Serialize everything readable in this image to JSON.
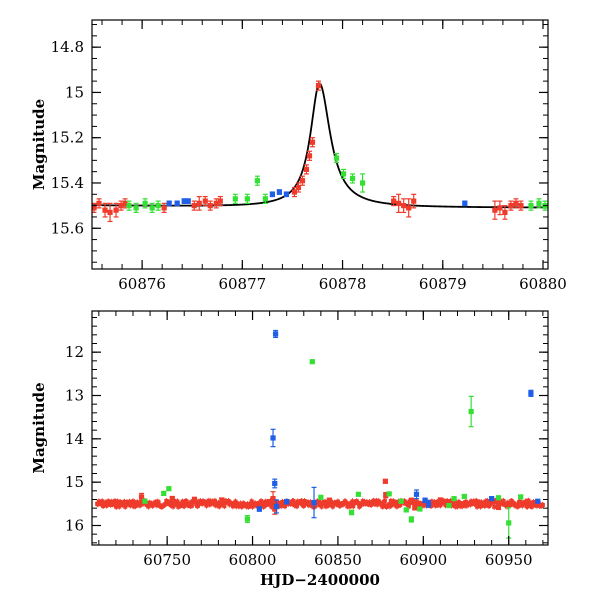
{
  "colors": {
    "red": "#ee3b2b",
    "green": "#35e035",
    "blue": "#1e5fe6",
    "model": "#000000"
  },
  "chart_data": [
    {
      "type": "scatter",
      "xlabel": "",
      "ylabel": "Magnitude",
      "xlim": [
        60875.5,
        60880.05
      ],
      "ylim": [
        15.78,
        14.68
      ],
      "y_inverted": true,
      "grid": false,
      "xticks": [
        60876,
        60877,
        60878,
        60879,
        60880
      ],
      "xtick_labels": [
        "60876",
        "60877",
        "60878",
        "60879",
        "60880"
      ],
      "yticks": [
        14.8,
        15.0,
        15.2,
        15.4,
        15.6
      ],
      "ytick_labels": [
        "14.8",
        "15",
        "15.2",
        "15.4",
        "15.6"
      ],
      "model_curve": {
        "type": "lorentzian_peak",
        "baseline": 15.51,
        "t0": 60877.77,
        "peak_mag": 14.96,
        "tau": 0.11,
        "tau_after": 0.13,
        "slope": -0.0106,
        "slope_ref": 60875.5,
        "color": "black"
      },
      "series": [
        {
          "color": "red",
          "points": [
            [
              60875.52,
              15.51,
              0.02
            ],
            [
              60875.57,
              15.49,
              0.02
            ],
            [
              60875.63,
              15.52,
              0.03
            ],
            [
              60875.68,
              15.53,
              0.04
            ],
            [
              60875.74,
              15.52,
              0.03
            ],
            [
              60875.79,
              15.5,
              0.02
            ],
            [
              60875.83,
              15.49,
              0.02
            ],
            [
              60876.22,
              15.51,
              0.02
            ],
            [
              60876.52,
              15.5,
              0.02
            ],
            [
              60876.57,
              15.49,
              0.03
            ],
            [
              60876.63,
              15.48,
              0.02
            ],
            [
              60876.68,
              15.5,
              0.02
            ],
            [
              60876.74,
              15.49,
              0.02
            ],
            [
              60876.78,
              15.48,
              0.02
            ],
            [
              60877.52,
              15.44,
              0.02
            ],
            [
              60877.56,
              15.42,
              0.02
            ],
            [
              60877.6,
              15.39,
              0.02
            ],
            [
              60877.64,
              15.34,
              0.02
            ],
            [
              60877.67,
              15.28,
              0.02
            ],
            [
              60877.7,
              15.22,
              0.02
            ],
            [
              60877.76,
              14.97,
              0.02
            ],
            [
              60878.51,
              15.48,
              0.02
            ],
            [
              60878.56,
              15.49,
              0.04
            ],
            [
              60878.61,
              15.5,
              0.03
            ],
            [
              60878.66,
              15.51,
              0.04
            ],
            [
              60878.71,
              15.48,
              0.03
            ],
            [
              60879.52,
              15.52,
              0.04
            ],
            [
              60879.57,
              15.51,
              0.03
            ],
            [
              60879.62,
              15.53,
              0.03
            ],
            [
              60879.68,
              15.5,
              0.02
            ],
            [
              60879.73,
              15.49,
              0.02
            ],
            [
              60879.78,
              15.5,
              0.02
            ]
          ]
        },
        {
          "color": "green",
          "points": [
            [
              60875.87,
              15.5,
              0.02
            ],
            [
              60875.94,
              15.51,
              0.02
            ],
            [
              60876.03,
              15.49,
              0.02
            ],
            [
              60876.1,
              15.51,
              0.02
            ],
            [
              60876.16,
              15.5,
              0.02
            ],
            [
              60876.93,
              15.47,
              0.02
            ],
            [
              60877.05,
              15.47,
              0.02
            ],
            [
              60877.15,
              15.39,
              0.02
            ],
            [
              60877.23,
              15.47,
              0.02
            ],
            [
              60877.94,
              15.29,
              0.02
            ],
            [
              60878.01,
              15.36,
              0.02
            ],
            [
              60878.1,
              15.38,
              0.02
            ],
            [
              60878.2,
              15.4,
              0.04
            ],
            [
              60879.88,
              15.5,
              0.02
            ],
            [
              60879.96,
              15.49,
              0.02
            ],
            [
              60880.02,
              15.5,
              0.02
            ]
          ]
        },
        {
          "color": "blue",
          "points": [
            [
              60876.27,
              15.49,
              0.01
            ],
            [
              60876.35,
              15.49,
              0.01
            ],
            [
              60876.42,
              15.48,
              0.01
            ],
            [
              60876.46,
              15.48,
              0.01
            ],
            [
              60877.3,
              15.45,
              0.01
            ],
            [
              60877.37,
              15.44,
              0.01
            ],
            [
              60877.44,
              15.45,
              0.01
            ],
            [
              60879.22,
              15.49,
              0.01
            ]
          ]
        }
      ]
    },
    {
      "type": "scatter",
      "xlabel": "HJD−2400000",
      "ylabel": "Magnitude",
      "xlim": [
        60706,
        60973
      ],
      "ylim": [
        16.45,
        11.05
      ],
      "y_inverted": true,
      "grid": false,
      "xticks": [
        60750,
        60800,
        60850,
        60900,
        60950
      ],
      "xtick_labels": [
        "60750",
        "60800",
        "60850",
        "60900",
        "60950"
      ],
      "yticks": [
        12,
        13,
        14,
        15,
        16
      ],
      "ytick_labels": [
        "12",
        "13",
        "14",
        "15",
        "16"
      ],
      "baseline_band": {
        "x": [
          60709,
          60970
        ],
        "baseline": 15.5,
        "scatter": 0.07,
        "color": "red"
      },
      "series": [
        {
          "color": "red",
          "points": [
            [
              60735,
              15.34,
              0.08
            ],
            [
              60753,
              15.38,
              0.05
            ],
            [
              60766,
              15.4,
              0.05
            ],
            [
              60782,
              15.41,
              0.04
            ],
            [
              60812,
              15.38,
              0.16
            ],
            [
              60813,
              15.62,
              0.12
            ],
            [
              60845,
              15.42,
              0.05
            ],
            [
              60877.8,
              14.98,
              0.04
            ],
            [
              60878,
              15.3,
              0.06
            ],
            [
              60893,
              15.42,
              0.05
            ],
            [
              60895,
              15.58,
              0.06
            ],
            [
              60910,
              15.41,
              0.04
            ],
            [
              60944,
              15.58,
              0.05
            ],
            [
              60961,
              15.44,
              0.04
            ]
          ]
        },
        {
          "color": "green",
          "points": [
            [
              60737,
              15.44,
              0.03
            ],
            [
              60748,
              15.26,
              0.03
            ],
            [
              60751,
              15.15,
              0.03
            ],
            [
              60797,
              15.85,
              0.08
            ],
            [
              60835,
              12.22,
              0.03
            ],
            [
              60840,
              15.35,
              0.03
            ],
            [
              60858,
              15.7,
              0.05
            ],
            [
              60862,
              15.28,
              0.03
            ],
            [
              60880,
              15.27,
              0.03
            ],
            [
              60887,
              15.44,
              0.03
            ],
            [
              60890,
              15.64,
              0.03
            ],
            [
              60893,
              15.86,
              0.06
            ],
            [
              60898,
              15.62,
              0.03
            ],
            [
              60915,
              15.54,
              0.03
            ],
            [
              60918,
              15.38,
              0.03
            ],
            [
              60924,
              15.33,
              0.03
            ],
            [
              60928,
              13.37,
              0.35
            ],
            [
              60944,
              15.36,
              0.03
            ],
            [
              60950,
              15.94,
              0.35
            ],
            [
              60957,
              15.34,
              0.03
            ]
          ]
        },
        {
          "color": "blue",
          "points": [
            [
              60804,
              15.62,
              0.05
            ],
            [
              60812,
              13.98,
              0.2
            ],
            [
              60813,
              15.03,
              0.1
            ],
            [
              60813.5,
              11.58,
              0.08
            ],
            [
              60814,
              15.56,
              0.15
            ],
            [
              60820,
              15.45,
              0.05
            ],
            [
              60836,
              15.47,
              0.35
            ],
            [
              60896,
              15.28,
              0.1
            ],
            [
              60901,
              15.42,
              0.05
            ],
            [
              60903,
              15.5,
              0.08
            ],
            [
              60940,
              15.38,
              0.03
            ],
            [
              60963,
              12.95,
              0.07
            ],
            [
              60967,
              15.44,
              0.03
            ]
          ]
        }
      ]
    }
  ]
}
